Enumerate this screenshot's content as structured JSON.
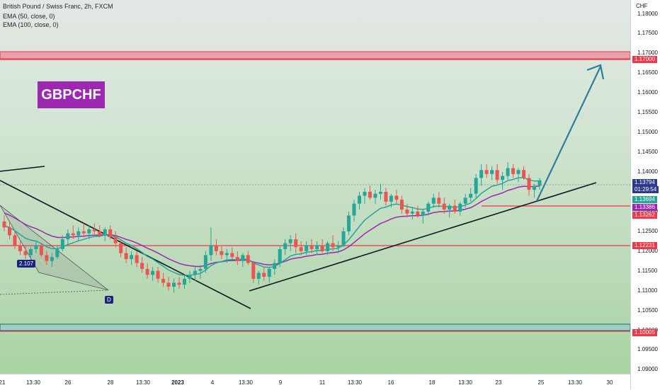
{
  "header": {
    "title": "British Pound / Swiss Franc, 2h, FXCM",
    "indicator_1": "EMA (50, close, 0)",
    "indicator_2": "EMA (100, close, 0)"
  },
  "symbol_label": "GBPCHF",
  "price_axis": {
    "currency": "CHF",
    "ticks": [
      "1.18000",
      "1.17500",
      "1.17000",
      "1.16500",
      "1.16000",
      "1.15500",
      "1.15000",
      "1.14500",
      "1.14000",
      "1.13500",
      "1.13000",
      "1.12500",
      "1.12000",
      "1.11500",
      "1.11000",
      "1.10500",
      "1.10000",
      "1.09500",
      "1.09000"
    ]
  },
  "time_axis": {
    "labels": [
      "21",
      "13:30",
      "26",
      "28",
      "13:30",
      "2023",
      "4",
      "13:30",
      "9",
      "11",
      "13:30",
      "16",
      "18",
      "13:30",
      "23",
      "25",
      "13:30",
      "30"
    ]
  },
  "price_badges": [
    {
      "text": "1.17000",
      "color": "#f23645"
    },
    {
      "text": "1.13794",
      "color": "#2a3a8c"
    },
    {
      "text": "01:29:54",
      "color": "#2a3a8c"
    },
    {
      "text": "1.13694",
      "color": "#26a69a"
    },
    {
      "text": "1.13386",
      "color": "#9c27b0"
    },
    {
      "text": "1.13262",
      "color": "#f23645"
    },
    {
      "text": "1.12231",
      "color": "#f23645"
    },
    {
      "text": "1.10005",
      "color": "#f23645"
    }
  ],
  "point_labels": [
    "2.107",
    "D"
  ],
  "chart_data": {
    "type": "candlestick",
    "title": "British Pound / Swiss Franc, 2h, FXCM",
    "ylim": [
      1.089,
      1.1835
    ],
    "series": [
      {
        "name": "EMA (50, close, 0)",
        "color": "#26a69a"
      },
      {
        "name": "EMA (100, close, 0)",
        "color": "#9c27b0"
      }
    ],
    "horizontal_levels": [
      1.17,
      1.13262,
      1.12231,
      1.10005
    ],
    "resistance_zone": [
      1.17,
      1.1715
    ],
    "support_zone": [
      1.0995,
      1.1012
    ],
    "last_price": 1.13794,
    "ema_50_last": 1.13694,
    "ema_100_last": 1.13386,
    "colors": {
      "up": "#26a69a",
      "down": "#ef5350",
      "level": "#f23645",
      "arrow": "#2e7d9a"
    },
    "candles": [
      [
        1.1275,
        1.129,
        1.125,
        1.126
      ],
      [
        1.126,
        1.1275,
        1.123,
        1.124
      ],
      [
        1.124,
        1.125,
        1.1205,
        1.1215
      ],
      [
        1.1215,
        1.1225,
        1.119,
        1.12
      ],
      [
        1.12,
        1.1215,
        1.118,
        1.119
      ],
      [
        1.119,
        1.121,
        1.1175,
        1.1205
      ],
      [
        1.1205,
        1.1225,
        1.1195,
        1.1215
      ],
      [
        1.1215,
        1.122,
        1.1185,
        1.119
      ],
      [
        1.119,
        1.12,
        1.1165,
        1.1175
      ],
      [
        1.1175,
        1.1195,
        1.116,
        1.1185
      ],
      [
        1.1185,
        1.1215,
        1.118,
        1.1205
      ],
      [
        1.1205,
        1.124,
        1.12,
        1.123
      ],
      [
        1.123,
        1.1255,
        1.1215,
        1.1245
      ],
      [
        1.1245,
        1.1265,
        1.123,
        1.124
      ],
      [
        1.124,
        1.126,
        1.1225,
        1.125
      ],
      [
        1.125,
        1.127,
        1.1235,
        1.1245
      ],
      [
        1.1245,
        1.1265,
        1.123,
        1.1255
      ],
      [
        1.1255,
        1.127,
        1.124,
        1.125
      ],
      [
        1.125,
        1.1265,
        1.1235,
        1.124
      ],
      [
        1.124,
        1.126,
        1.1225,
        1.1255
      ],
      [
        1.1255,
        1.1265,
        1.123,
        1.1235
      ],
      [
        1.1235,
        1.125,
        1.121,
        1.122
      ],
      [
        1.122,
        1.123,
        1.1185,
        1.1195
      ],
      [
        1.1195,
        1.121,
        1.117,
        1.118
      ],
      [
        1.118,
        1.12,
        1.1165,
        1.119
      ],
      [
        1.119,
        1.12,
        1.116,
        1.117
      ],
      [
        1.117,
        1.1185,
        1.1145,
        1.1155
      ],
      [
        1.1155,
        1.117,
        1.113,
        1.114
      ],
      [
        1.114,
        1.116,
        1.1125,
        1.115
      ],
      [
        1.115,
        1.116,
        1.112,
        1.113
      ],
      [
        1.113,
        1.1145,
        1.111,
        1.112
      ],
      [
        1.112,
        1.1135,
        1.11,
        1.111
      ],
      [
        1.111,
        1.113,
        1.1095,
        1.112
      ],
      [
        1.112,
        1.1135,
        1.1105,
        1.1115
      ],
      [
        1.1115,
        1.114,
        1.1105,
        1.113
      ],
      [
        1.113,
        1.115,
        1.112,
        1.114
      ],
      [
        1.114,
        1.116,
        1.1125,
        1.115
      ],
      [
        1.115,
        1.1165,
        1.113,
        1.1155
      ],
      [
        1.1155,
        1.12,
        1.1145,
        1.119
      ],
      [
        1.119,
        1.126,
        1.1175,
        1.1215
      ],
      [
        1.1215,
        1.123,
        1.119,
        1.12
      ],
      [
        1.12,
        1.1215,
        1.118,
        1.119
      ],
      [
        1.119,
        1.1205,
        1.117,
        1.1195
      ],
      [
        1.1195,
        1.121,
        1.118,
        1.1185
      ],
      [
        1.1185,
        1.12,
        1.1165,
        1.1175
      ],
      [
        1.1175,
        1.1195,
        1.116,
        1.119
      ],
      [
        1.119,
        1.12,
        1.1165,
        1.117
      ],
      [
        1.117,
        1.1175,
        1.112,
        1.113
      ],
      [
        1.113,
        1.115,
        1.1115,
        1.1145
      ],
      [
        1.1145,
        1.116,
        1.1125,
        1.1135
      ],
      [
        1.1135,
        1.116,
        1.112,
        1.1155
      ],
      [
        1.1155,
        1.118,
        1.114,
        1.117
      ],
      [
        1.117,
        1.1215,
        1.116,
        1.1205
      ],
      [
        1.1205,
        1.123,
        1.119,
        1.122
      ],
      [
        1.122,
        1.124,
        1.12,
        1.123
      ],
      [
        1.123,
        1.1245,
        1.1195,
        1.121
      ],
      [
        1.121,
        1.1225,
        1.119,
        1.12
      ],
      [
        1.12,
        1.1225,
        1.119,
        1.1215
      ],
      [
        1.1215,
        1.123,
        1.1195,
        1.1205
      ],
      [
        1.1205,
        1.1225,
        1.119,
        1.1215
      ],
      [
        1.1215,
        1.123,
        1.1195,
        1.12
      ],
      [
        1.12,
        1.1225,
        1.119,
        1.122
      ],
      [
        1.122,
        1.124,
        1.12,
        1.121
      ],
      [
        1.121,
        1.1225,
        1.1195,
        1.1215
      ],
      [
        1.1215,
        1.126,
        1.121,
        1.125
      ],
      [
        1.125,
        1.13,
        1.124,
        1.129
      ],
      [
        1.129,
        1.133,
        1.1275,
        1.132
      ],
      [
        1.132,
        1.135,
        1.1305,
        1.134
      ],
      [
        1.134,
        1.136,
        1.132,
        1.135
      ],
      [
        1.135,
        1.1365,
        1.133,
        1.1335
      ],
      [
        1.1335,
        1.1355,
        1.132,
        1.1345
      ],
      [
        1.1345,
        1.137,
        1.133,
        1.135
      ],
      [
        1.135,
        1.136,
        1.1315,
        1.1325
      ],
      [
        1.1325,
        1.1345,
        1.131,
        1.134
      ],
      [
        1.134,
        1.1355,
        1.132,
        1.133
      ],
      [
        1.133,
        1.134,
        1.1295,
        1.1305
      ],
      [
        1.1305,
        1.132,
        1.1285,
        1.1295
      ],
      [
        1.1295,
        1.131,
        1.128,
        1.13
      ],
      [
        1.13,
        1.1315,
        1.1285,
        1.129
      ],
      [
        1.129,
        1.1305,
        1.127,
        1.13
      ],
      [
        1.13,
        1.1325,
        1.129,
        1.132
      ],
      [
        1.132,
        1.1345,
        1.131,
        1.1335
      ],
      [
        1.1335,
        1.135,
        1.131,
        1.132
      ],
      [
        1.132,
        1.1335,
        1.1295,
        1.1305
      ],
      [
        1.1305,
        1.132,
        1.1285,
        1.1315
      ],
      [
        1.1315,
        1.133,
        1.1295,
        1.13
      ],
      [
        1.13,
        1.1325,
        1.129,
        1.132
      ],
      [
        1.132,
        1.1345,
        1.131,
        1.1335
      ],
      [
        1.1335,
        1.136,
        1.1325,
        1.1345
      ],
      [
        1.1345,
        1.1395,
        1.1335,
        1.1385
      ],
      [
        1.1385,
        1.142,
        1.1365,
        1.1405
      ],
      [
        1.1405,
        1.142,
        1.1385,
        1.1395
      ],
      [
        1.1395,
        1.1415,
        1.138,
        1.1405
      ],
      [
        1.1405,
        1.142,
        1.137,
        1.138
      ],
      [
        1.138,
        1.14,
        1.1355,
        1.139
      ],
      [
        1.139,
        1.1425,
        1.138,
        1.141
      ],
      [
        1.141,
        1.142,
        1.1385,
        1.1395
      ],
      [
        1.1395,
        1.141,
        1.1375,
        1.1405
      ],
      [
        1.1405,
        1.1415,
        1.138,
        1.1385
      ],
      [
        1.1385,
        1.1395,
        1.134,
        1.1355
      ],
      [
        1.1355,
        1.137,
        1.1335,
        1.1365
      ],
      [
        1.1365,
        1.1385,
        1.1355,
        1.1379
      ]
    ]
  }
}
